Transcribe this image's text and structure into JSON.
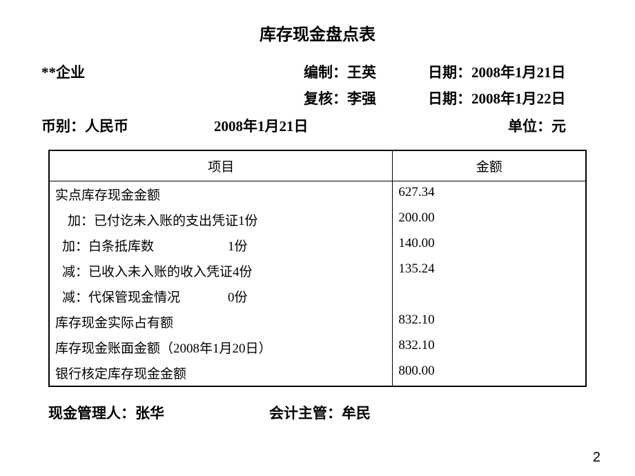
{
  "title": "库存现金盘点表",
  "company": "**企业",
  "preparedByLabel": "编制：",
  "preparedBy": "王英",
  "preparedDateLabel": "日期：",
  "preparedDate": "2008年1月21日",
  "reviewedByLabel": "复核：",
  "reviewedBy": "李强",
  "reviewedDateLabel": "日期：",
  "reviewedDate": "2008年1月22日",
  "currencyLabel": "币别：",
  "currency": "人民币",
  "centerDate": "2008年1月21日",
  "unitLabel": "单位：",
  "unit": "元",
  "headers": {
    "item": "项目",
    "amount": "金额"
  },
  "rows": [
    {
      "label": "实点库存现金金额",
      "count": "",
      "amount": "627.34",
      "indent": 0
    },
    {
      "label": "加：已付讫未入账的支出凭证",
      "count": "1份",
      "amount": "200.00",
      "indent": 1
    },
    {
      "label": "加：白条抵库数",
      "count": "1份",
      "amount": "140.00",
      "indent": 2
    },
    {
      "label": "减：已收入未入账的收入凭证",
      "count": "4份",
      "amount": "135.24",
      "indent": 2
    },
    {
      "label": "减：代保管现金情况",
      "count": "0份",
      "amount": "",
      "indent": 2
    },
    {
      "label": "库存现金实际占有额",
      "count": "",
      "amount": "832.10",
      "indent": 0
    },
    {
      "label": "库存现金账面金额（2008年1月20日）",
      "count": "",
      "amount": "832.10",
      "indent": 0
    },
    {
      "label": "银行核定库存现金金额",
      "count": "",
      "amount": "800.00",
      "indent": 0
    }
  ],
  "cashManagerLabel": "现金管理人：",
  "cashManager": "张华",
  "accountingSupervisorLabel": "会计主管：",
  "accountingSupervisor": "牟民",
  "pageNumber": "2"
}
